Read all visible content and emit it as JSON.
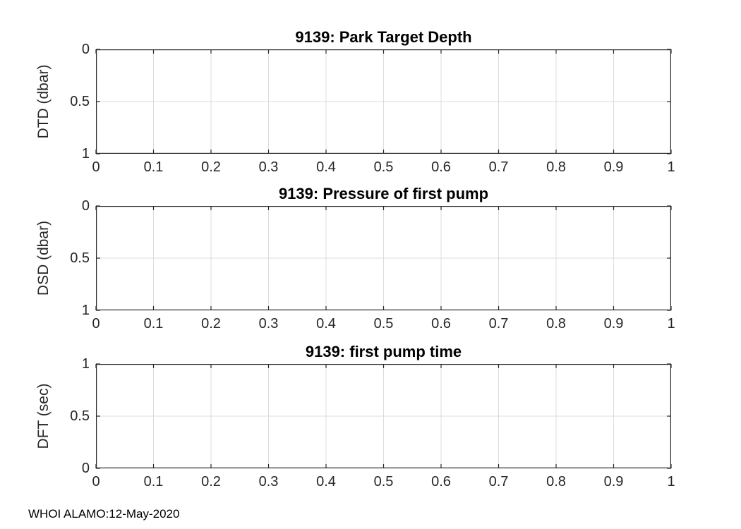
{
  "figure": {
    "footer": "WHOI ALAMO:12-May-2020",
    "background_color": "#ffffff",
    "axis_color": "#262626",
    "grid_color": "#dcdcdc",
    "title_color": "#000000"
  },
  "chart_data": [
    {
      "type": "line",
      "title": "9139: Park Target Depth",
      "xlabel": "",
      "ylabel": "DTD (dbar)",
      "xlim": [
        0,
        1
      ],
      "ylim": [
        0,
        1
      ],
      "y_direction": "reverse",
      "grid": true,
      "box": true,
      "xticks": {
        "values": [
          0,
          0.1,
          0.2,
          0.3,
          0.4,
          0.5,
          0.6,
          0.7,
          0.8,
          0.9,
          1
        ],
        "labels": [
          "0",
          "0.1",
          "0.2",
          "0.3",
          "0.4",
          "0.5",
          "0.6",
          "0.7",
          "0.8",
          "0.9",
          "1"
        ]
      },
      "yticks": {
        "values": [
          0,
          0.5,
          1
        ],
        "labels": [
          "0",
          "0.5",
          "1"
        ]
      },
      "series": []
    },
    {
      "type": "line",
      "title": "9139: Pressure of first pump",
      "xlabel": "",
      "ylabel": "DSD (dbar)",
      "xlim": [
        0,
        1
      ],
      "ylim": [
        0,
        1
      ],
      "y_direction": "reverse",
      "grid": true,
      "box": true,
      "xticks": {
        "values": [
          0,
          0.1,
          0.2,
          0.3,
          0.4,
          0.5,
          0.6,
          0.7,
          0.8,
          0.9,
          1
        ],
        "labels": [
          "0",
          "0.1",
          "0.2",
          "0.3",
          "0.4",
          "0.5",
          "0.6",
          "0.7",
          "0.8",
          "0.9",
          "1"
        ]
      },
      "yticks": {
        "values": [
          0,
          0.5,
          1
        ],
        "labels": [
          "0",
          "0.5",
          "1"
        ]
      },
      "series": []
    },
    {
      "type": "line",
      "title": "9139: first pump time",
      "xlabel": "",
      "ylabel": "DFT (sec)",
      "xlim": [
        0,
        1
      ],
      "ylim": [
        0,
        1
      ],
      "y_direction": "normal",
      "grid": true,
      "box": true,
      "xticks": {
        "values": [
          0,
          0.1,
          0.2,
          0.3,
          0.4,
          0.5,
          0.6,
          0.7,
          0.8,
          0.9,
          1
        ],
        "labels": [
          "0",
          "0.1",
          "0.2",
          "0.3",
          "0.4",
          "0.5",
          "0.6",
          "0.7",
          "0.8",
          "0.9",
          "1"
        ]
      },
      "yticks": {
        "values": [
          0,
          0.5,
          1
        ],
        "labels": [
          "0",
          "0.5",
          "1"
        ]
      },
      "series": []
    }
  ]
}
